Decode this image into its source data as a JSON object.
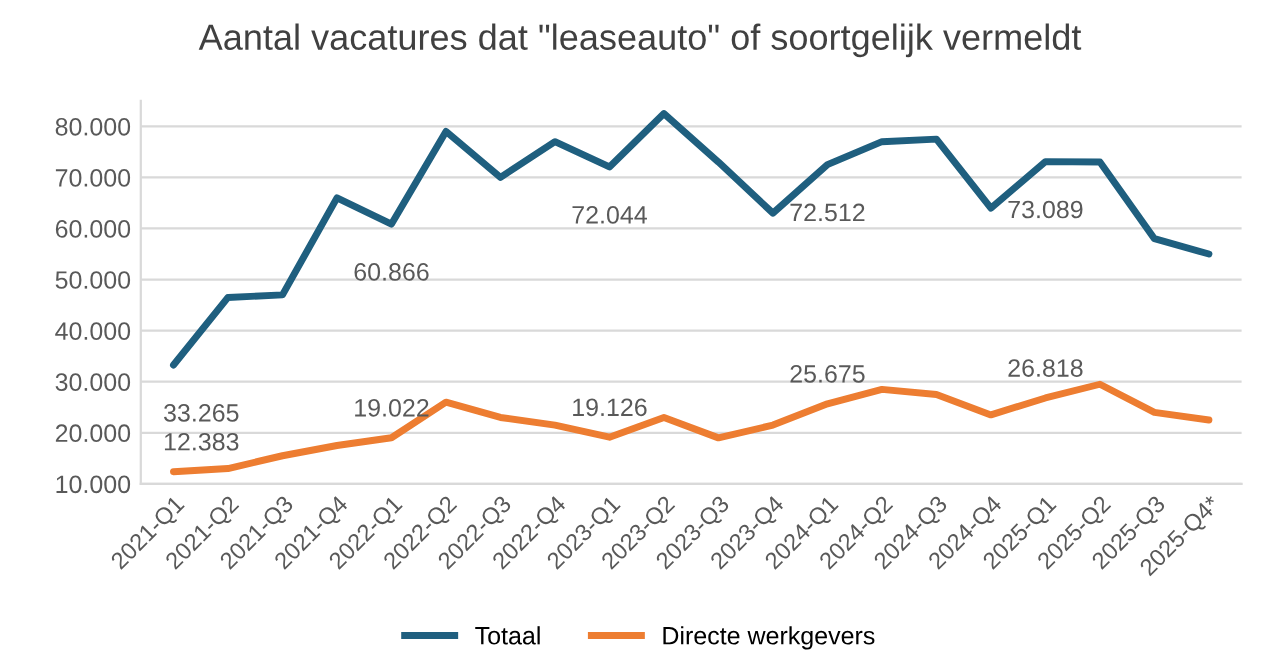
{
  "chart_data": {
    "type": "line",
    "title": "Aantal vacatures dat \"leaseauto\" of soortgelijk vermeldt",
    "categories": [
      "2021-Q1",
      "2021-Q2",
      "2021-Q3",
      "2021-Q4",
      "2022-Q1",
      "2022-Q2",
      "2022-Q3",
      "2022-Q4",
      "2023-Q1",
      "2023-Q2",
      "2023-Q3",
      "2023-Q4",
      "2024-Q1",
      "2024-Q2",
      "2024-Q3",
      "2024-Q4",
      "2025-Q1",
      "2025-Q2",
      "2025-Q3",
      "2025-Q4*"
    ],
    "series": [
      {
        "name": "Totaal",
        "color": "#1f5f7f",
        "values": [
          33265,
          46500,
          47000,
          66000,
          60866,
          79000,
          70000,
          77000,
          72044,
          82500,
          73000,
          63000,
          72512,
          77000,
          77500,
          64000,
          73089,
          73000,
          58000,
          55000
        ],
        "value_labels": [
          "33.265",
          null,
          null,
          null,
          "60.866",
          null,
          null,
          null,
          "72.044",
          null,
          null,
          null,
          "72.512",
          null,
          null,
          null,
          "73.089",
          null,
          null,
          null
        ]
      },
      {
        "name": "Directe werkgevers",
        "color": "#ed7d31",
        "values": [
          12383,
          13000,
          15500,
          17500,
          19022,
          26000,
          23000,
          21500,
          19126,
          23000,
          19000,
          21500,
          25675,
          28500,
          27500,
          23500,
          26818,
          29500,
          24000,
          22500
        ],
        "value_labels": [
          "12.383",
          null,
          null,
          null,
          "19.022",
          null,
          null,
          null,
          "19.126",
          null,
          null,
          null,
          "25.675",
          null,
          null,
          null,
          "26.818",
          null,
          null,
          null
        ]
      }
    ],
    "ylim": [
      10000,
      85000
    ],
    "yticks": [
      {
        "value": 10000,
        "label": "10.000"
      },
      {
        "value": 20000,
        "label": "20.000"
      },
      {
        "value": 30000,
        "label": "30.000"
      },
      {
        "value": 40000,
        "label": "40.000"
      },
      {
        "value": 50000,
        "label": "50.000"
      },
      {
        "value": 60000,
        "label": "60.000"
      },
      {
        "value": 70000,
        "label": "70.000"
      },
      {
        "value": 80000,
        "label": "80.000"
      }
    ],
    "grid": "y",
    "legend": "bottom",
    "marker": "none",
    "line_style": "solid"
  }
}
